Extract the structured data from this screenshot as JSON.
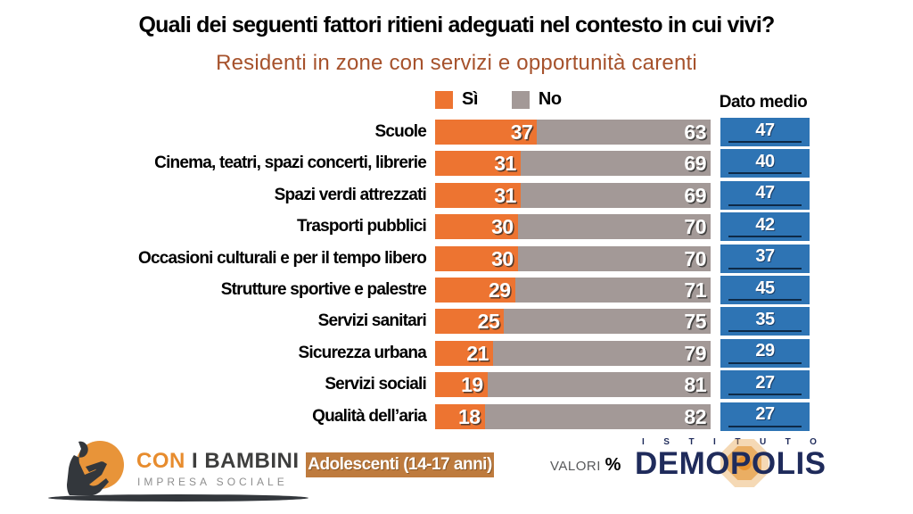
{
  "title": "Quali dei seguenti fattori ritieni adeguati nel contesto in cui vivi?",
  "subtitle": "Residenti in zone con servizi e opportunità carenti",
  "legend": {
    "si": "Sì",
    "no": "No"
  },
  "dato_medio_label": "Dato medio",
  "colors": {
    "si": "#ED7431",
    "no": "#A39997",
    "medio_box": "#2E74B4",
    "medio_underline": "#0E2A47",
    "subtitle": "#A6522C",
    "badge": "#BE7B3E",
    "demopolis_navy": "#1F2B5B"
  },
  "chart_data": {
    "type": "bar",
    "stacked": true,
    "orientation": "horizontal",
    "unit": "%",
    "title": "Quali dei seguenti fattori ritieni adeguati nel contesto in cui vivi?",
    "subtitle": "Residenti in zone con servizi e opportunità carenti",
    "legend_position": "top",
    "xlim": [
      0,
      100
    ],
    "categories": [
      "Scuole",
      "Cinema, teatri, spazi concerti, librerie",
      "Spazi verdi attrezzati",
      "Trasporti pubblici",
      "Occasioni culturali e per il tempo libero",
      "Strutture sportive e palestre",
      "Servizi sanitari",
      "Sicurezza urbana",
      "Servizi sociali",
      "Qualità dell’aria"
    ],
    "series": [
      {
        "name": "Sì",
        "color": "#ED7431",
        "values": [
          37,
          31,
          31,
          30,
          30,
          29,
          25,
          21,
          19,
          18
        ]
      },
      {
        "name": "No",
        "color": "#A39997",
        "values": [
          63,
          69,
          69,
          70,
          70,
          71,
          75,
          79,
          81,
          82
        ]
      }
    ],
    "dato_medio": {
      "label": "Dato medio",
      "color": "#2E74B4",
      "values": [
        47,
        40,
        47,
        42,
        37,
        45,
        35,
        29,
        27,
        27
      ]
    }
  },
  "footer": {
    "con_i_bambini": {
      "word1": "CON",
      "word2": "I BAMBINI",
      "tagline": "IMPRESA SOCIALE"
    },
    "badge": "Adolescenti (14-17 anni)",
    "valori_label": "VALORI",
    "valori_unit": "%",
    "demopolis": {
      "istituto": "ISTITUTO",
      "name": "DEMOPOLIS"
    }
  }
}
